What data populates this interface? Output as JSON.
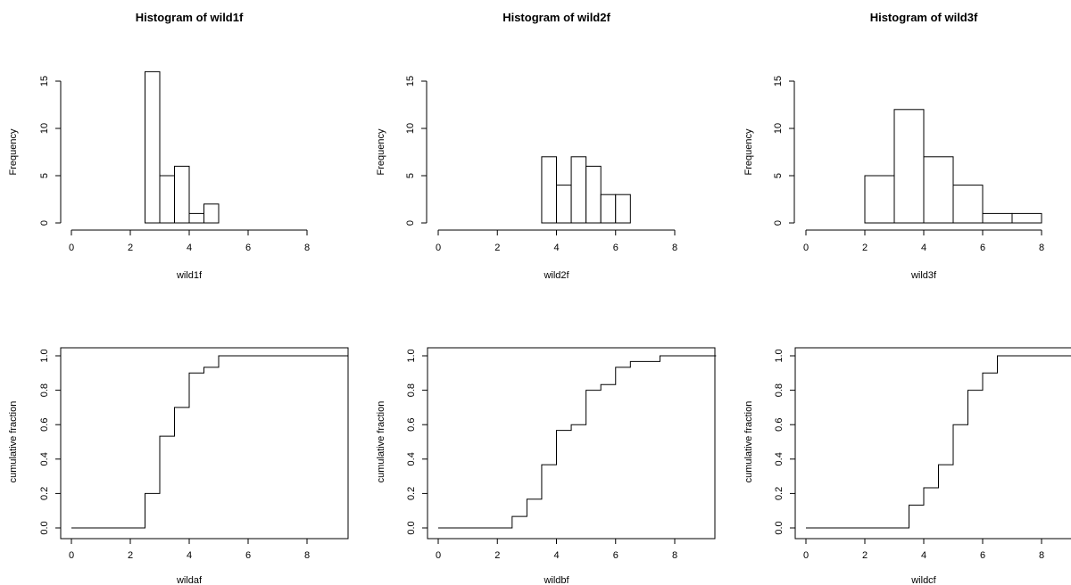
{
  "chart_data": [
    {
      "type": "bar",
      "title": "Histogram of wild1f",
      "xlabel": "wild1f",
      "ylabel": "Frequency",
      "xlim": [
        0,
        8
      ],
      "ylim": [
        0,
        15
      ],
      "xticks": [
        "0",
        "2",
        "4",
        "6",
        "8"
      ],
      "yticks": [
        "0",
        "5",
        "10",
        "15"
      ],
      "bin_edges": [
        2.5,
        3,
        3.5,
        4,
        4.5,
        5
      ],
      "values": [
        16,
        5,
        6,
        1,
        2
      ]
    },
    {
      "type": "bar",
      "title": "Histogram of wild2f",
      "xlabel": "wild2f",
      "ylabel": "Frequency",
      "xlim": [
        0,
        8
      ],
      "ylim": [
        0,
        15
      ],
      "xticks": [
        "0",
        "2",
        "4",
        "6",
        "8"
      ],
      "yticks": [
        "0",
        "5",
        "10",
        "15"
      ],
      "bin_edges": [
        3.5,
        4,
        4.5,
        5,
        5.5,
        6,
        6.5
      ],
      "values": [
        7,
        4,
        7,
        6,
        3,
        3
      ]
    },
    {
      "type": "bar",
      "title": "Histogram of wild3f",
      "xlabel": "wild3f",
      "ylabel": "Frequency",
      "xlim": [
        0,
        8
      ],
      "ylim": [
        0,
        15
      ],
      "xticks": [
        "0",
        "2",
        "4",
        "6",
        "8"
      ],
      "yticks": [
        "0",
        "5",
        "10",
        "15"
      ],
      "bin_edges": [
        2,
        3,
        4,
        5,
        6,
        7,
        8
      ],
      "values": [
        5,
        12,
        7,
        4,
        1,
        1
      ]
    },
    {
      "type": "line",
      "step": true,
      "xlabel": "wildaf",
      "ylabel": "cumulative fraction",
      "xlim": [
        0,
        9.4
      ],
      "ylim": [
        0,
        1
      ],
      "xticks": [
        "0",
        "2",
        "4",
        "6",
        "8"
      ],
      "yticks": [
        "0.0",
        "0.2",
        "0.4",
        "0.6",
        "0.8",
        "1.0"
      ],
      "x": [
        0,
        2.5,
        3,
        3.5,
        4,
        4.5,
        5,
        9.4
      ],
      "y": [
        0,
        0.2,
        0.533,
        0.7,
        0.9,
        0.933,
        1.0,
        1.0
      ]
    },
    {
      "type": "line",
      "step": true,
      "xlabel": "wildbf",
      "ylabel": "cumulative fraction",
      "xlim": [
        0,
        9.4
      ],
      "ylim": [
        0,
        1
      ],
      "xticks": [
        "0",
        "2",
        "4",
        "6",
        "8"
      ],
      "yticks": [
        "0.0",
        "0.2",
        "0.4",
        "0.6",
        "0.8",
        "1.0"
      ],
      "x": [
        0,
        2.5,
        3,
        3.5,
        4,
        4.5,
        5,
        5.5,
        6,
        6.5,
        7.5,
        9.4
      ],
      "y": [
        0,
        0.067,
        0.167,
        0.367,
        0.567,
        0.6,
        0.8,
        0.833,
        0.933,
        0.967,
        1.0,
        1.0
      ]
    },
    {
      "type": "line",
      "step": true,
      "xlabel": "wildcf",
      "ylabel": "cumulative fraction",
      "xlim": [
        0,
        9.4
      ],
      "ylim": [
        0,
        1
      ],
      "xticks": [
        "0",
        "2",
        "4",
        "6",
        "8"
      ],
      "yticks": [
        "0.0",
        "0.2",
        "0.4",
        "0.6",
        "0.8",
        "1.0"
      ],
      "x": [
        0,
        3.5,
        4,
        4.5,
        5,
        5.5,
        6,
        6.5,
        9.4
      ],
      "y": [
        0,
        0.133,
        0.233,
        0.367,
        0.6,
        0.8,
        0.9,
        1.0,
        1.0
      ]
    }
  ]
}
